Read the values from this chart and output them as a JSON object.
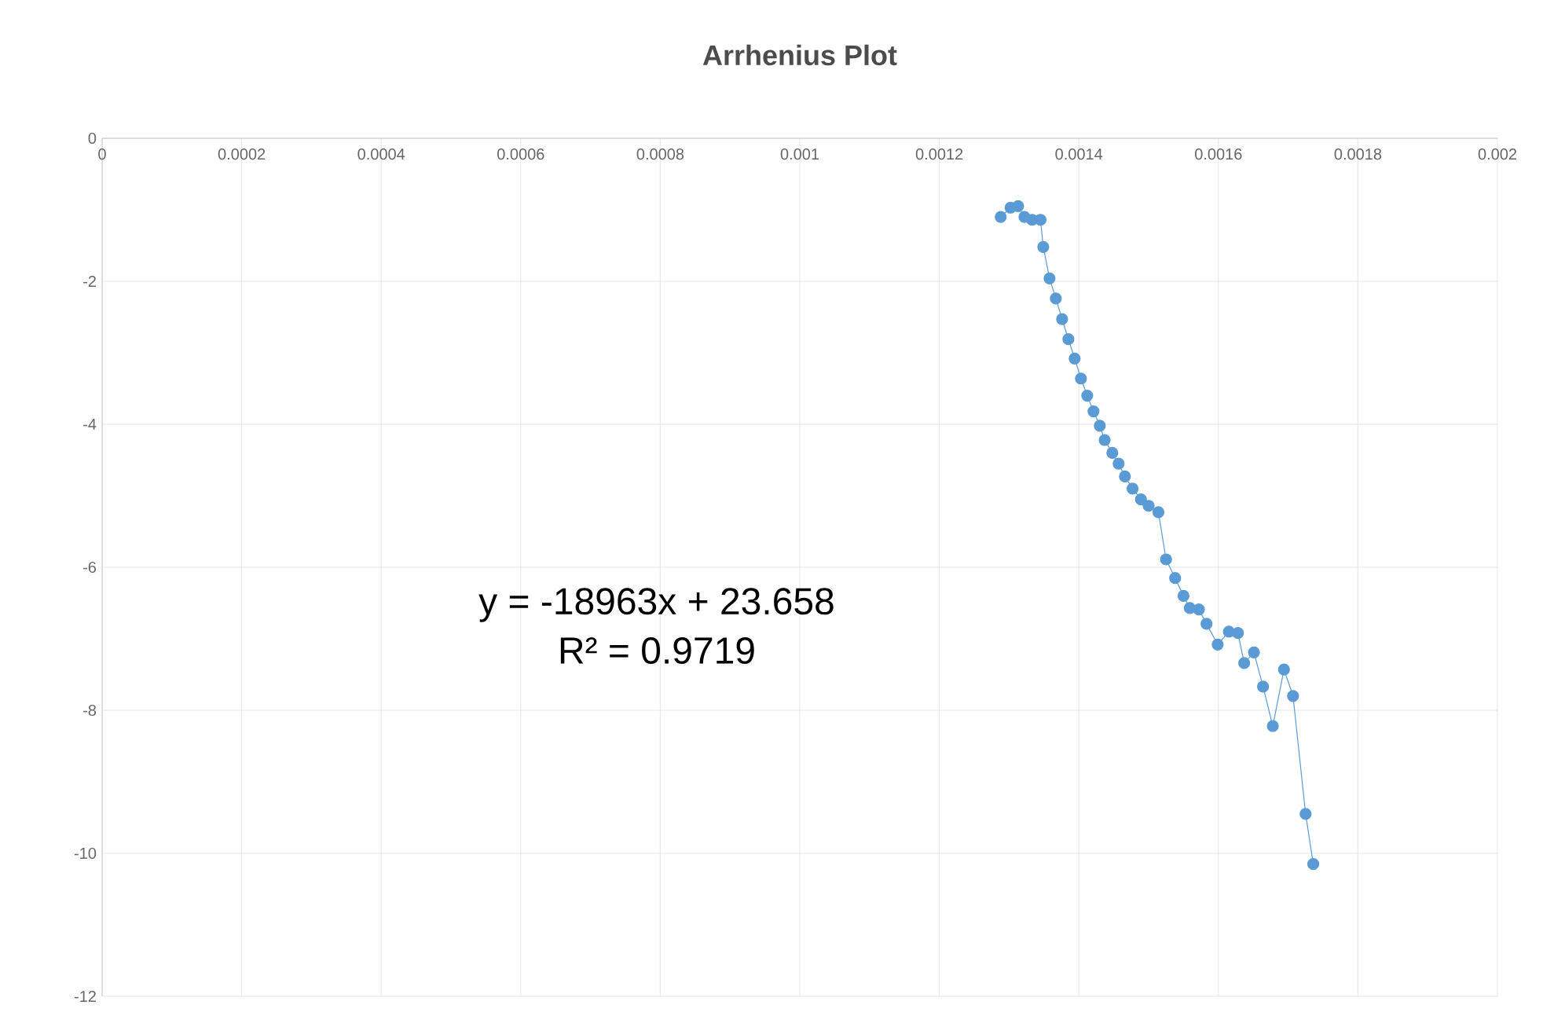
{
  "chart_data": {
    "type": "line",
    "title": "Arrhenius Plot",
    "x": [
      0.001288,
      0.001302,
      0.001313,
      0.001322,
      0.001333,
      0.001345,
      0.001349,
      0.001358,
      0.001367,
      0.001376,
      0.001385,
      0.001394,
      0.001403,
      0.001412,
      0.001421,
      0.00143,
      0.001437,
      0.001448,
      0.001457,
      0.001466,
      0.001477,
      0.001489,
      0.0015,
      0.001514,
      0.001525,
      0.001538,
      0.00155,
      0.001559,
      0.001572,
      0.001583,
      0.001599,
      0.001615,
      0.001628,
      0.001637,
      0.001651,
      0.001664,
      0.001678,
      0.001694,
      0.001707,
      0.001725,
      0.001736
    ],
    "series": [
      {
        "color": "#5b9bd5",
        "values": [
          -1.1,
          -0.97,
          -0.95,
          -1.1,
          -1.14,
          -1.14,
          -1.52,
          -1.96,
          -2.24,
          -2.53,
          -2.81,
          -3.08,
          -3.36,
          -3.6,
          -3.82,
          -4.02,
          -4.22,
          -4.4,
          -4.55,
          -4.73,
          -4.9,
          -5.05,
          -5.14,
          -5.23,
          -5.89,
          -6.15,
          -6.4,
          -6.57,
          -6.59,
          -6.79,
          -7.08,
          -6.9,
          -6.92,
          -7.34,
          -7.19,
          -7.67,
          -8.22,
          -7.43,
          -7.8,
          -9.45,
          -10.15
        ]
      }
    ],
    "xlim": [
      0,
      0.002
    ],
    "ylim": [
      -12,
      0
    ],
    "xticks": [
      0,
      0.0002,
      0.0004,
      0.0006,
      0.0008,
      0.001,
      0.0012,
      0.0014,
      0.0016,
      0.0018,
      0.002
    ],
    "yticks": [
      0,
      -2,
      -4,
      -6,
      -8,
      -10,
      -12
    ],
    "grid": true,
    "marker": "circle",
    "line_style": "solid",
    "annotations": [
      "y = -18963x + 23.658",
      "R² = 0.9719"
    ]
  }
}
